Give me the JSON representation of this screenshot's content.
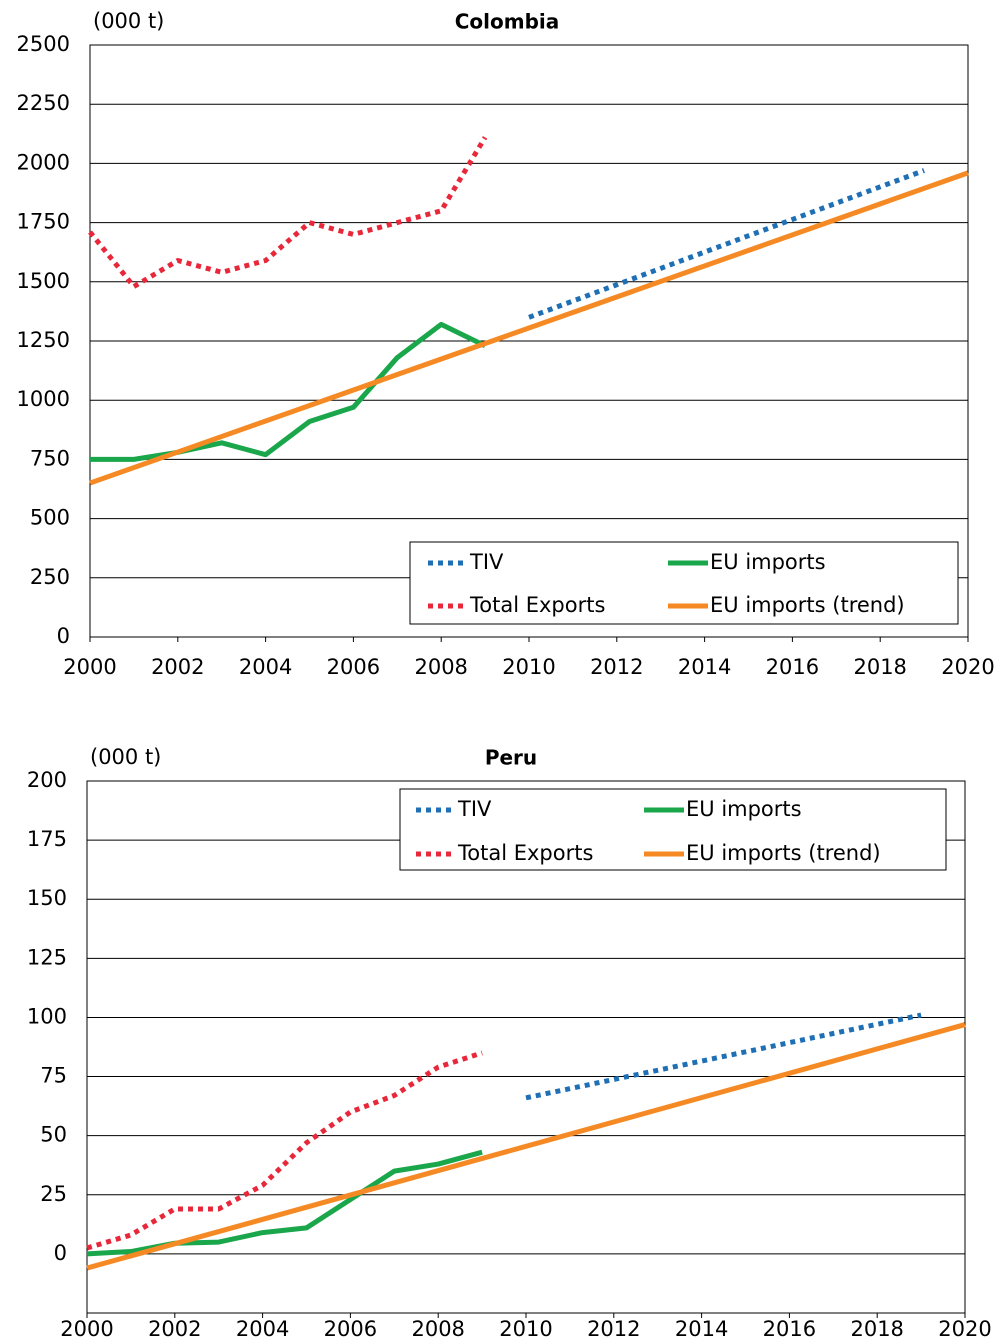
{
  "chart_data": [
    {
      "type": "line",
      "title": "Colombia",
      "unit_label": "(000 t)",
      "xlim": [
        2000,
        2020
      ],
      "xticks": [
        2000,
        2002,
        2004,
        2006,
        2008,
        2010,
        2012,
        2014,
        2016,
        2018,
        2020
      ],
      "ylim": [
        0,
        2500
      ],
      "yticks": [
        0,
        250,
        500,
        750,
        1000,
        1250,
        1500,
        1750,
        2000,
        2250,
        2500
      ],
      "grid": true,
      "legend": "lower right",
      "series": [
        {
          "name": "TIV",
          "color": "#1f6fb5",
          "style": "dotted",
          "x": [
            2010,
            2019
          ],
          "values": [
            1350,
            1970
          ]
        },
        {
          "name": "EU imports",
          "color": "#1aa64a",
          "style": "solid",
          "x": [
            2000,
            2001,
            2002,
            2003,
            2004,
            2005,
            2006,
            2007,
            2008,
            2009
          ],
          "values": [
            750,
            750,
            780,
            820,
            770,
            910,
            970,
            1180,
            1320,
            1230
          ]
        },
        {
          "name": "Total Exports",
          "color": "#e8283a",
          "style": "dotted",
          "x": [
            2000,
            2001,
            2002,
            2003,
            2004,
            2005,
            2006,
            2007,
            2008,
            2009
          ],
          "values": [
            1710,
            1480,
            1590,
            1540,
            1590,
            1750,
            1700,
            1750,
            1800,
            2110
          ]
        },
        {
          "name": "EU imports (trend)",
          "color": "#f58a25",
          "style": "solid",
          "x": [
            2000,
            2020
          ],
          "values": [
            650,
            1960
          ]
        }
      ]
    },
    {
      "type": "line",
      "title": "Peru",
      "unit_label": "(000 t)",
      "xlim": [
        2000,
        2020
      ],
      "xticks": [
        2000,
        2002,
        2004,
        2006,
        2008,
        2010,
        2012,
        2014,
        2016,
        2018,
        2020
      ],
      "ylim": [
        -25,
        200
      ],
      "yticks": [
        0,
        25,
        50,
        75,
        100,
        125,
        150,
        175,
        200
      ],
      "grid": true,
      "legend": "upper right",
      "series": [
        {
          "name": "TIV",
          "color": "#1f6fb5",
          "style": "dotted",
          "x": [
            2010,
            2019
          ],
          "values": [
            66,
            101
          ]
        },
        {
          "name": "EU imports",
          "color": "#1aa64a",
          "style": "solid",
          "x": [
            2000,
            2001,
            2002,
            2003,
            2004,
            2005,
            2006,
            2007,
            2008,
            2009
          ],
          "values": [
            0,
            1,
            4.5,
            5,
            9,
            11,
            23,
            35,
            38,
            43
          ]
        },
        {
          "name": "Total Exports",
          "color": "#e8283a",
          "style": "dotted",
          "x": [
            2000,
            2001,
            2002,
            2003,
            2004,
            2005,
            2006,
            2007,
            2008,
            2009
          ],
          "values": [
            2.5,
            8,
            19,
            19,
            29,
            47,
            60,
            67,
            79,
            85
          ]
        },
        {
          "name": "EU imports (trend)",
          "color": "#f58a25",
          "style": "solid",
          "x": [
            2000,
            2020
          ],
          "values": [
            -6,
            97
          ]
        }
      ]
    }
  ]
}
